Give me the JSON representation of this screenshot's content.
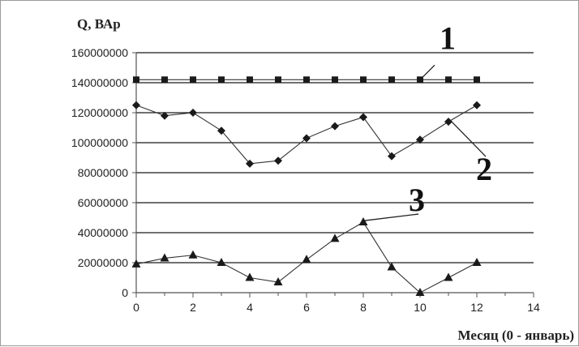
{
  "chart_data": {
    "type": "line",
    "title": "",
    "ylabel": "Q, ВАр",
    "xlabel": "Месяц (0 - январь)",
    "xlim": [
      0,
      14
    ],
    "ylim": [
      0,
      160000000
    ],
    "x_ticks": [
      "0",
      "2",
      "4",
      "6",
      "8",
      "10",
      "12",
      "14"
    ],
    "y_ticks": [
      "0",
      "20000000",
      "40000000",
      "60000000",
      "80000000",
      "100000000",
      "120000000",
      "140000000",
      "160000000"
    ],
    "grid": "horizontal",
    "legend": "none",
    "x": [
      0,
      1,
      2,
      3,
      4,
      5,
      6,
      7,
      8,
      9,
      10,
      11,
      12
    ],
    "series": [
      {
        "name": "1",
        "marker": "square",
        "values": [
          142000000,
          142000000,
          142000000,
          142000000,
          142000000,
          142000000,
          142000000,
          142000000,
          142000000,
          142000000,
          142000000,
          142000000,
          142000000
        ]
      },
      {
        "name": "2",
        "marker": "diamond",
        "values": [
          125000000,
          118000000,
          120000000,
          108000000,
          86000000,
          88000000,
          103000000,
          111000000,
          117000000,
          91000000,
          102000000,
          114000000,
          125000000
        ]
      },
      {
        "name": "3",
        "marker": "triangle",
        "values": [
          19000000,
          23000000,
          25000000,
          20000000,
          10000000,
          7000000,
          22000000,
          36000000,
          47000000,
          17000000,
          0,
          10000000,
          20000000
        ]
      }
    ],
    "annotations": [
      {
        "text": "1",
        "series": 0,
        "point": 10
      },
      {
        "text": "2",
        "series": 1,
        "point": 11
      },
      {
        "text": "3",
        "series": 2,
        "point": 8
      }
    ],
    "colors": {
      "line": "#333333",
      "marker": "#1a1a1a",
      "grid": "#1a1a1a",
      "axis": "#555555"
    }
  }
}
